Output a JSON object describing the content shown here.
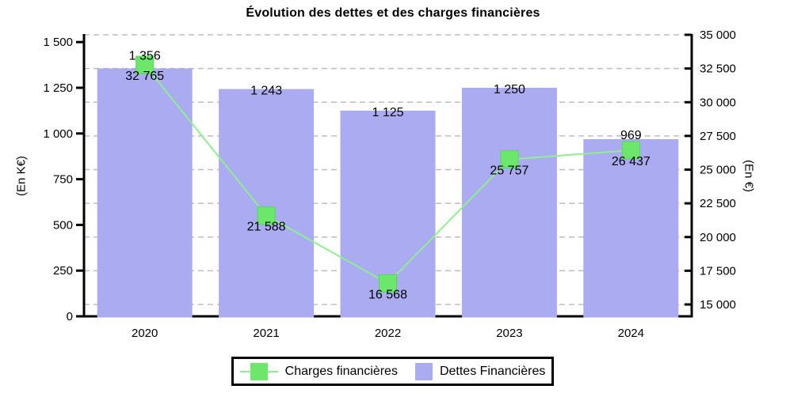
{
  "title": "Évolution des dettes et des charges financières",
  "chart_data": {
    "type": "combo-bar-line",
    "title": "Évolution des dettes et des charges financières",
    "categories": [
      "2020",
      "2021",
      "2022",
      "2023",
      "2024"
    ],
    "series": [
      {
        "name": "Dettes Financières",
        "type": "bar",
        "axis": "left",
        "values": [
          1356,
          1243,
          1125,
          1250,
          969
        ],
        "labels": [
          "1 356",
          "1 243",
          "1 125",
          "1 250",
          "969"
        ]
      },
      {
        "name": "Charges financières",
        "type": "line",
        "axis": "right",
        "values": [
          32765,
          21588,
          16568,
          25757,
          26437
        ],
        "labels": [
          "32 765",
          "21 588",
          "16 568",
          "25 757",
          "26 437"
        ]
      }
    ],
    "left_axis": {
      "label": "(En K€)",
      "min": 0,
      "max": 1500,
      "step": 250,
      "tick_labels": [
        "0",
        "250",
        "500",
        "750",
        "1 000",
        "1 250",
        "1 500"
      ]
    },
    "right_axis": {
      "label": "(En €)",
      "min": 15000,
      "max": 35000,
      "step": 2500,
      "tick_labels": [
        "15 000",
        "17 500",
        "20 000",
        "22 500",
        "25 000",
        "27 500",
        "30 000",
        "32 500",
        "35 000"
      ]
    },
    "grid": "horizontal dashed lines at right-axis ticks",
    "legend_position": "bottom"
  },
  "legend": {
    "items": [
      {
        "label": "Charges financières",
        "swatch": "line-marker"
      },
      {
        "label": "Dettes Financières",
        "swatch": "square"
      }
    ]
  },
  "colors": {
    "bar": "#ABABF2",
    "line": "#90EE90",
    "marker": "#6CE76C",
    "marker_edge": "#55D755",
    "grid": "#BDBDBD",
    "axis": "#000000",
    "text": "#000000",
    "background": "#FFFFFF"
  }
}
